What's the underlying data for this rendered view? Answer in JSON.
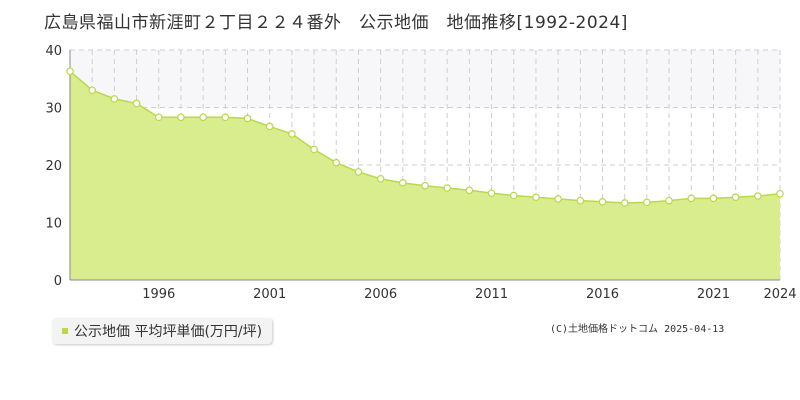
{
  "title": "広島県福山市新涯町２丁目２２４番外　公示地価　地価推移[1992-2024]",
  "legend": {
    "label": "公示地価 平均坪単価(万円/坪)"
  },
  "copyright": "(C)土地価格ドットコム 2025-04-13",
  "colors": {
    "fill": "#d9ec8e",
    "line": "#b8d94a",
    "band": "#f7f7f9",
    "grid": "#cfcfcf",
    "marker_fill": "#ffffff"
  },
  "chart_data": {
    "type": "area",
    "x": [
      1992,
      1993,
      1994,
      1995,
      1996,
      1997,
      1998,
      1999,
      2000,
      2001,
      2002,
      2003,
      2004,
      2005,
      2006,
      2007,
      2008,
      2009,
      2010,
      2011,
      2012,
      2013,
      2014,
      2015,
      2016,
      2017,
      2018,
      2019,
      2020,
      2021,
      2022,
      2023,
      2024
    ],
    "series": [
      {
        "values": [
          36.3,
          33.0,
          31.5,
          30.7,
          28.3,
          28.3,
          28.3,
          28.3,
          28.1,
          26.7,
          25.4,
          22.7,
          20.4,
          18.8,
          17.6,
          16.9,
          16.4,
          16.0,
          15.6,
          15.1,
          14.7,
          14.4,
          14.1,
          13.8,
          13.6,
          13.4,
          13.5,
          13.8,
          14.2,
          14.2,
          14.4,
          14.6,
          15.0
        ]
      }
    ],
    "x_tick_labels": [
      "1996",
      "2001",
      "2006",
      "2011",
      "2016",
      "2021",
      "2024"
    ],
    "y_ticks": [
      0,
      10,
      20,
      30,
      40
    ],
    "xlim": [
      1992,
      2024
    ],
    "ylim": [
      0,
      40
    ],
    "grid": true,
    "shaded_band": [
      30,
      40
    ]
  }
}
